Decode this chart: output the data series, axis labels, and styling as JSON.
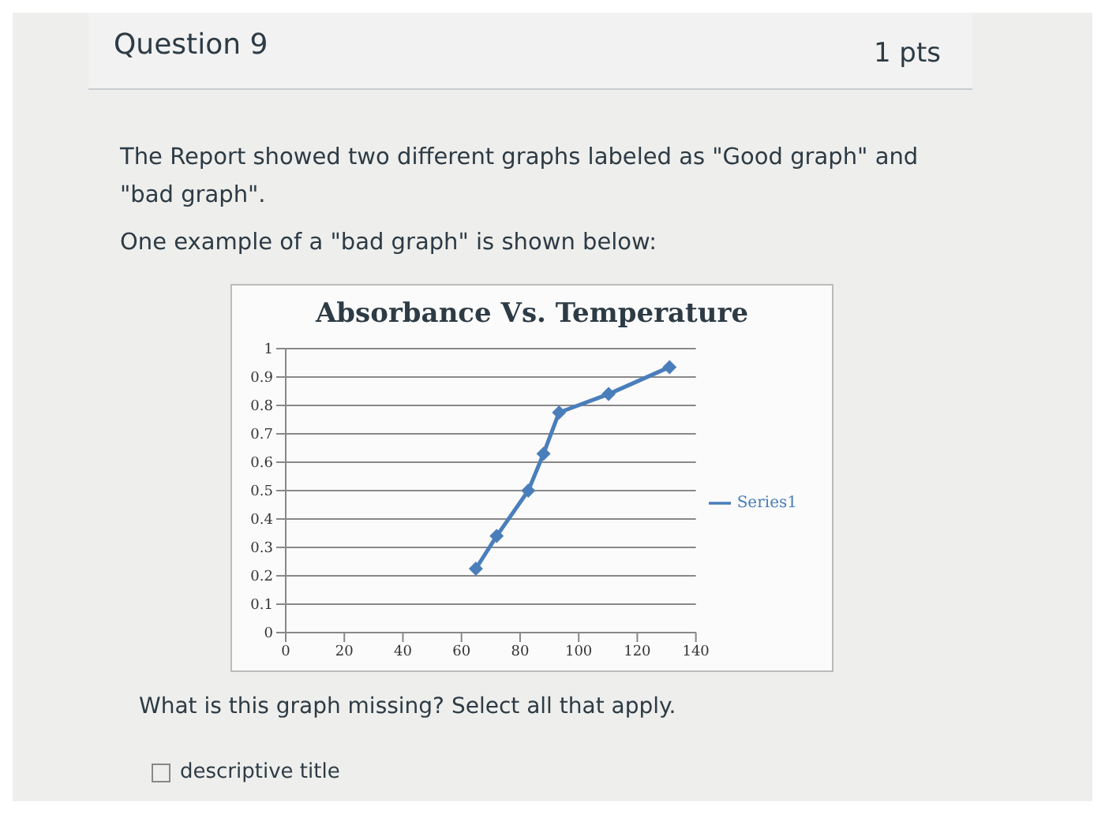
{
  "chart_data": {
    "type": "line",
    "title": "Absorbance Vs. Temperature",
    "x": [
      64.9,
      72,
      82.8,
      88,
      93.3,
      110.2,
      131
    ],
    "series": [
      {
        "name": "Series1",
        "color": "#4a7ebb",
        "values": [
          0.225,
          0.34,
          0.5,
          0.63,
          0.775,
          0.84,
          0.935
        ]
      }
    ],
    "xlim": [
      0,
      140
    ],
    "xticks": [
      0,
      20,
      40,
      60,
      80,
      100,
      120,
      140
    ],
    "ylim": [
      0,
      1
    ],
    "yticks": [
      0,
      0.1,
      0.2,
      0.3,
      0.4,
      0.5,
      0.6,
      0.7,
      0.8,
      0.9,
      1
    ],
    "grid": "y",
    "legend": "right",
    "marker": "diamond",
    "line_style": "solid",
    "annotations": [
      "Question 9",
      "1 pts",
      "The Report showed two different graphs labeled as \"Good graph\" and \"bad graph\".",
      "One example of a  \"bad graph\" is shown below:",
      "What is this graph missing?  Select all that apply.",
      "descriptive title"
    ]
  }
}
